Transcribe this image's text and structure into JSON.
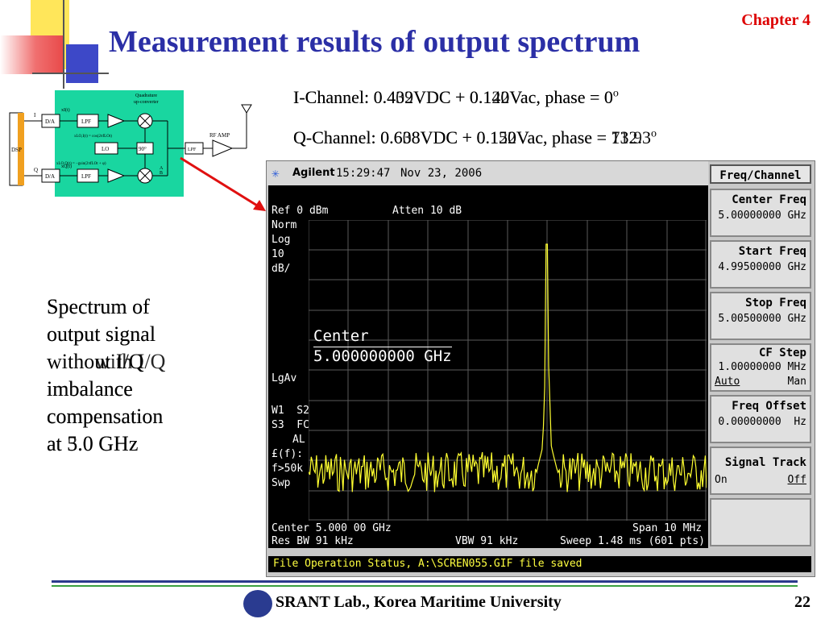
{
  "slide": {
    "title": "Measurement results of output spectrum",
    "chapter": "Chapter 4",
    "i_channel_line1": "I-Channel:  0.432VDC + 0.140Vac, phase = 0",
    "i_channel_line2": "I-Channel:  0.409VDC + 0.122Vac, phase = 0",
    "q_channel_line1": "Q-Channel: 0.638VDC + 0.150Vac, phase = 132.3",
    "q_channel_line2": "Q-Channel: 0.608VDC + 0.122Vac, phase = 71.9",
    "degree_mark": "o",
    "side_text_a": [
      "Spectrum of",
      "output signal",
      "without I/Q",
      "imbalance",
      "compensation",
      "at 5.0 GHz"
    ],
    "side_text_b": [
      "Spectrum of",
      "output signal",
      "with I/Q",
      "imbalance",
      "compensation",
      "at 3.0 GHz"
    ],
    "footer": "SRANT Lab., Korea Maritime University",
    "page_number": "22"
  },
  "block_diagram": {
    "labels": {
      "dsp": "DSP",
      "i": "I",
      "q": "Q",
      "da_top": "D/A",
      "da_bottom": "D/A",
      "lpf_top": "LPF",
      "lpf_bottom": "LPF",
      "lo": "LO",
      "phase": "90°",
      "lpf_out": "LPF",
      "rf_amp": "RF AMP",
      "quadrature": "Quadrature",
      "upconverter": "up-converter",
      "x_i": "xI(t)",
      "x_q": "xQ(t)",
      "lo_i": "xLO,I(t) = cos(2πfLOt)",
      "lo_q": "xLO,Q(t) = −gsin(2πfLOt + φ)",
      "a": "A",
      "b": "B"
    }
  },
  "analyzer": {
    "brand": "Agilent",
    "time": "15:29:47",
    "date": "Nov 23, 2006",
    "ref": "Ref 0 dBm",
    "atten": "Atten 10 dB",
    "left_labels": [
      "Norm",
      "Log",
      "10",
      "dB/"
    ],
    "lgav": "LgAv",
    "w1s2": "W1  S2",
    "s3fc": "S3  FC",
    "al": "AL",
    "ef": "£(f):",
    "f50k": "f>50k",
    "swp": "Swp",
    "center_marker": "Center",
    "center_marker_value": "5.000000000 GHz",
    "center_bottom": "Center 5.000 00 GHz",
    "span": "Span 10 MHz",
    "res_bw": "Res BW 91 kHz",
    "vbw": "VBW 91 kHz",
    "sweep": "Sweep 1.48 ms (601 pts)",
    "status": "File Operation Status, A:\\SCREN055.GIF file saved",
    "menu_title": "Freq/Channel",
    "softkeys": [
      {
        "title": "Center Freq",
        "value": "5.00000000 GHz"
      },
      {
        "title": "Start Freq",
        "value": "4.99500000 GHz"
      },
      {
        "title": "Stop Freq",
        "value": "5.00500000 GHz"
      },
      {
        "title": "CF Step",
        "value": "1.00000000 MHz",
        "left": "Auto",
        "right": "Man"
      },
      {
        "title": "Freq Offset",
        "value": "0.00000000  Hz"
      },
      {
        "title": "Signal Track",
        "left": "On",
        "right": "Off"
      }
    ]
  }
}
